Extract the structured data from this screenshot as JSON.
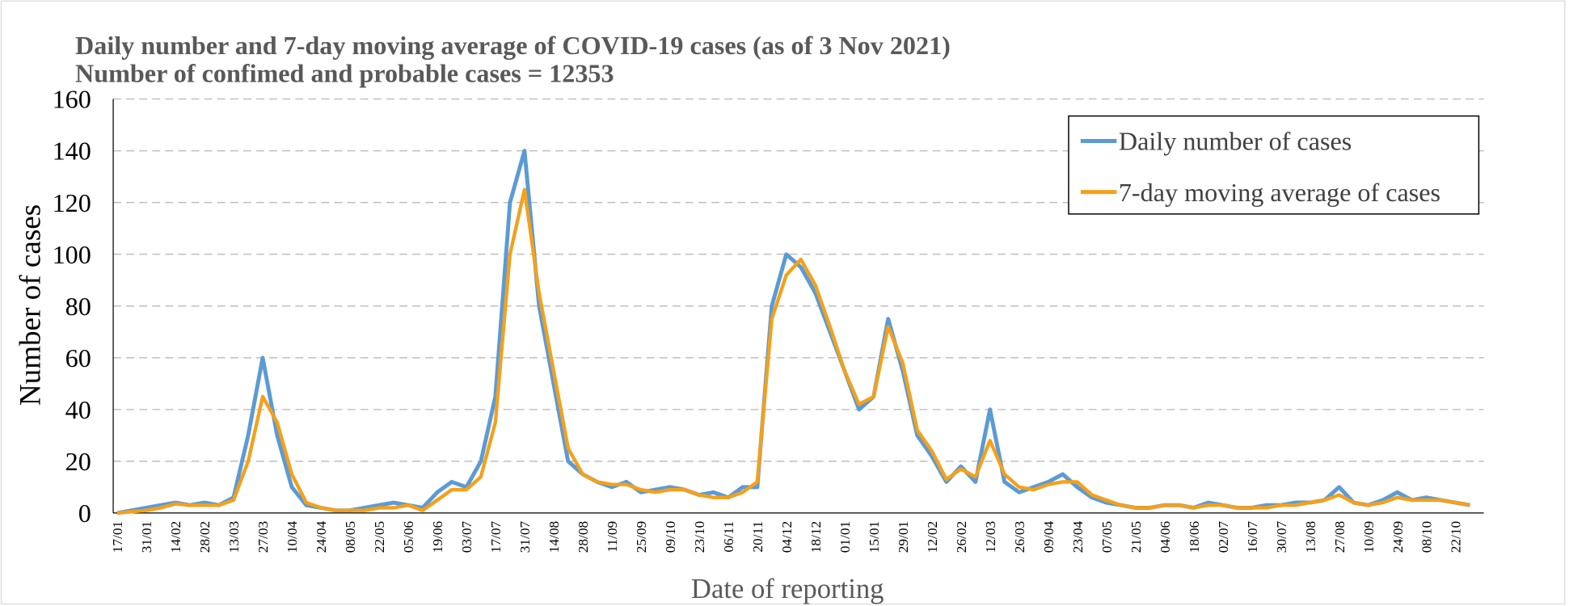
{
  "chart_data": {
    "type": "line",
    "title": "Daily number and 7-day moving average of COVID-19 cases (as of 3 Nov 2021)",
    "subtitle": "Number of confimed and probable cases = 12353",
    "x_label": "Date of reporting",
    "y_label": "Number of cases",
    "categories": [
      "17/01",
      null,
      "31/01",
      null,
      "14/02",
      null,
      "28/02",
      null,
      "13/03",
      null,
      "27/03",
      null,
      "10/04",
      null,
      "24/04",
      null,
      "08/05",
      null,
      "22/05",
      null,
      "05/06",
      null,
      "19/06",
      null,
      "03/07",
      null,
      "17/07",
      null,
      "31/07",
      null,
      "14/08",
      null,
      "28/08",
      null,
      "11/09",
      null,
      "25/09",
      null,
      "09/10",
      null,
      "23/10",
      null,
      "06/11",
      null,
      "20/11",
      null,
      "04/12",
      null,
      "18/12",
      null,
      "01/01",
      null,
      "15/01",
      null,
      "29/01",
      null,
      "12/02",
      null,
      "26/02",
      null,
      "12/03",
      null,
      "26/03",
      null,
      "09/04",
      null,
      "23/04",
      null,
      "07/05",
      null,
      "21/05",
      null,
      "04/06",
      null,
      "18/06",
      null,
      "02/07",
      null,
      "16/07",
      null,
      "30/07",
      null,
      "13/08",
      null,
      "27/08",
      null,
      "10/09",
      null,
      "24/09",
      null,
      "08/10",
      null,
      "22/10",
      null
    ],
    "series": [
      {
        "name": "Daily number of cases",
        "color": "#5b9bd5",
        "values": [
          0,
          1,
          2,
          3,
          4,
          3,
          4,
          3,
          6,
          30,
          60,
          30,
          10,
          3,
          2,
          1,
          1,
          2,
          3,
          4,
          3,
          2,
          8,
          12,
          10,
          20,
          45,
          120,
          140,
          80,
          50,
          20,
          15,
          12,
          10,
          12,
          8,
          9,
          10,
          9,
          7,
          8,
          6,
          10,
          10,
          80,
          100,
          95,
          85,
          70,
          55,
          40,
          45,
          75,
          55,
          30,
          22,
          12,
          18,
          12,
          40,
          12,
          8,
          10,
          12,
          15,
          10,
          6,
          4,
          3,
          2,
          2,
          3,
          3,
          2,
          4,
          3,
          2,
          2,
          3,
          3,
          4,
          4,
          5,
          10,
          4,
          3,
          5,
          8,
          5,
          6,
          5,
          4,
          3
        ]
      },
      {
        "name": "7-day moving average of cases",
        "color": "#f5a01a",
        "values": [
          0,
          0.5,
          1,
          2,
          3.5,
          3,
          3,
          3,
          5,
          20,
          45,
          35,
          15,
          4,
          2,
          1,
          1,
          1,
          2,
          2,
          3,
          1,
          5,
          9,
          9,
          14,
          35,
          100,
          125,
          85,
          55,
          25,
          15,
          12,
          11,
          11,
          9,
          8,
          9,
          9,
          7,
          6,
          6,
          8,
          12,
          75,
          92,
          98,
          88,
          72,
          55,
          42,
          45,
          72,
          58,
          32,
          24,
          13,
          17,
          14,
          28,
          15,
          10,
          9,
          11,
          12,
          12,
          7,
          5,
          3,
          2,
          2,
          3,
          3,
          2,
          3,
          3,
          2,
          2,
          2,
          3,
          3,
          4,
          5,
          7,
          4,
          3,
          4,
          6,
          5,
          5,
          5,
          4,
          3
        ]
      }
    ],
    "ylim": [
      0,
      160
    ],
    "yticks": [
      0,
      20,
      40,
      60,
      80,
      100,
      120,
      140,
      160
    ],
    "grid": true,
    "legend": "upper right"
  }
}
